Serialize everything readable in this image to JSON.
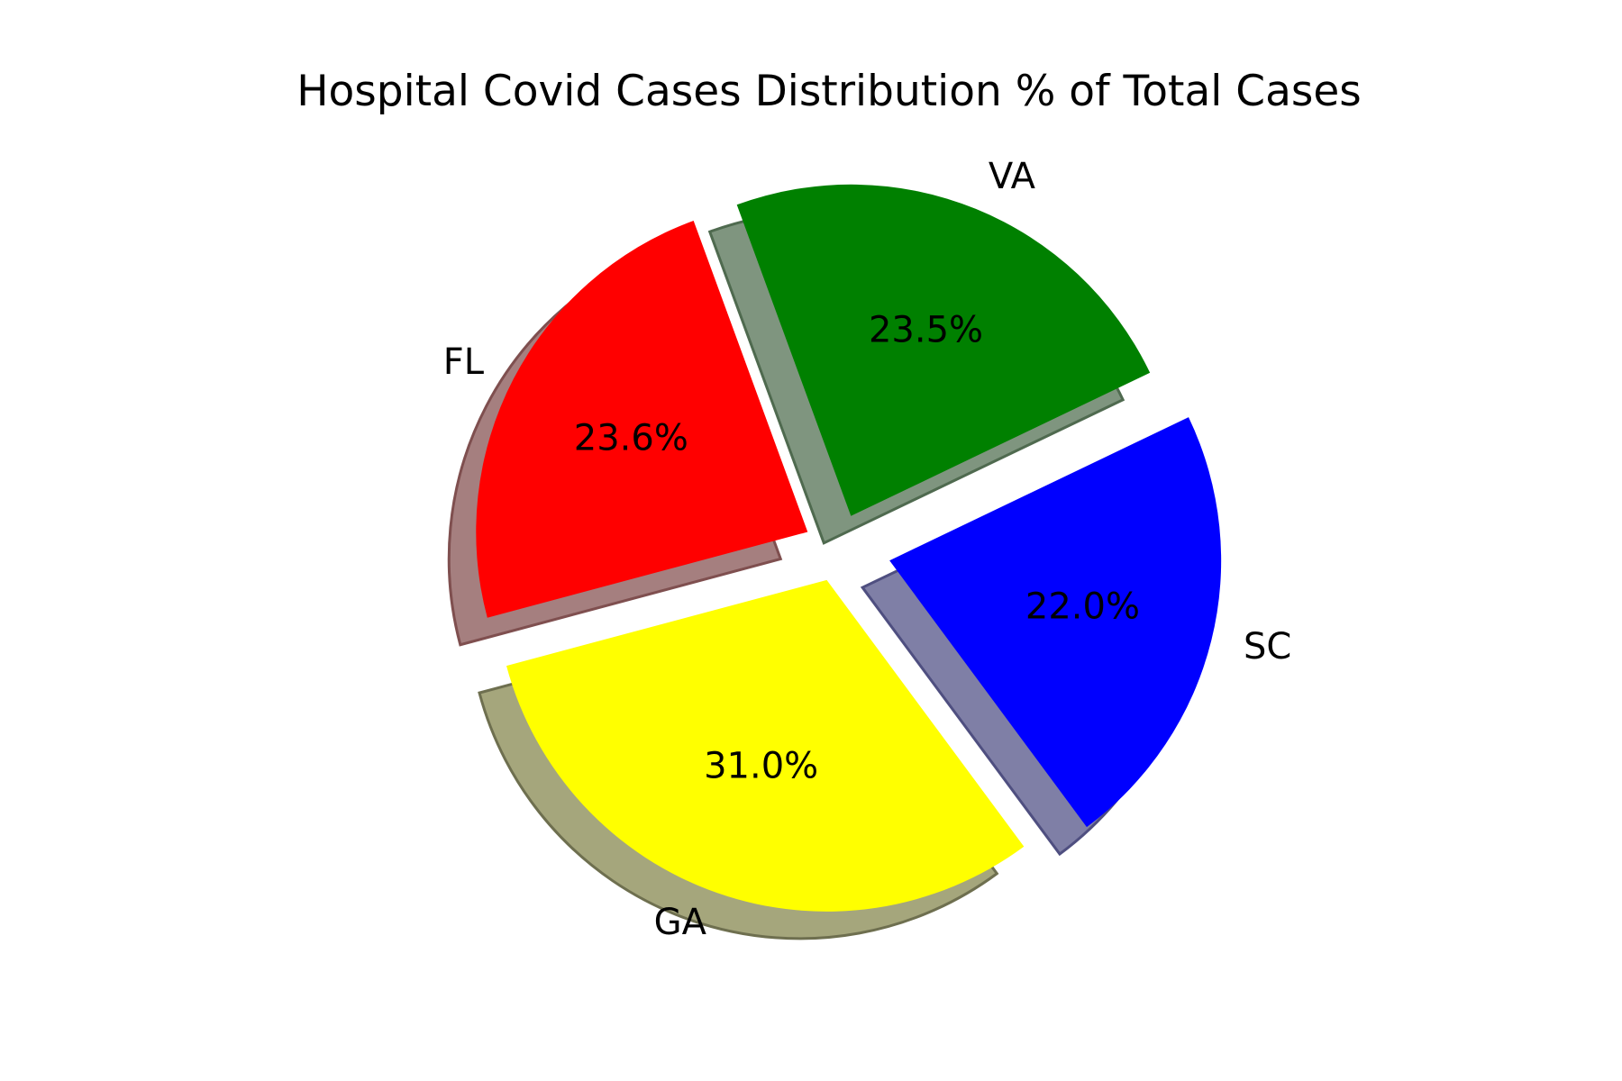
{
  "chart_data": {
    "type": "pie",
    "title": "Hospital Covid Cases Distribution % of Total Cases",
    "labels": [
      "GA",
      "SC",
      "VA",
      "FL"
    ],
    "values": [
      31.0,
      22.0,
      23.5,
      23.6
    ],
    "percent_labels": [
      "31.0%",
      "22.0%",
      "23.5%",
      "23.6%"
    ],
    "colors": [
      "#ffff00",
      "#0000ff",
      "#008000",
      "#ff0000"
    ],
    "exploded": [
      true,
      true,
      true,
      true
    ],
    "shadow": true,
    "start_angle_deg": 195,
    "direction": "counterclockwise"
  }
}
